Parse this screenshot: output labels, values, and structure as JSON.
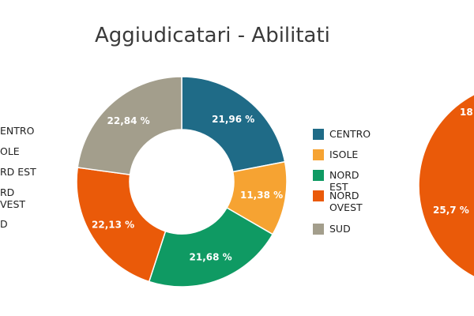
{
  "chart_data": [
    {
      "type": "pie",
      "title": "Aggiudicatari - Abilitati",
      "categories": [
        "CENTRO",
        "ISOLE",
        "NORD EST",
        "NORD\nOVEST",
        "SUD"
      ],
      "values": [
        21.96,
        11.38,
        21.68,
        22.13,
        22.84
      ],
      "value_labels": [
        "21,96 %",
        "11,38 %",
        "21,68 %",
        "22,13 %",
        "22,84 %"
      ],
      "colors": [
        "#1f6b87",
        "#f6a332",
        "#0f9a63",
        "#ea5a09",
        "#a39e8c"
      ],
      "legend_position": "right"
    },
    {
      "type": "pie",
      "title": "",
      "visible_labels": [
        "18",
        "25,7 %"
      ],
      "colors": [
        "#ea5a09",
        "#a39e8c"
      ]
    }
  ],
  "left_legend_fragments": [
    "ENTRO",
    "OLE",
    "RD EST",
    "RD",
    "VEST",
    "D"
  ]
}
